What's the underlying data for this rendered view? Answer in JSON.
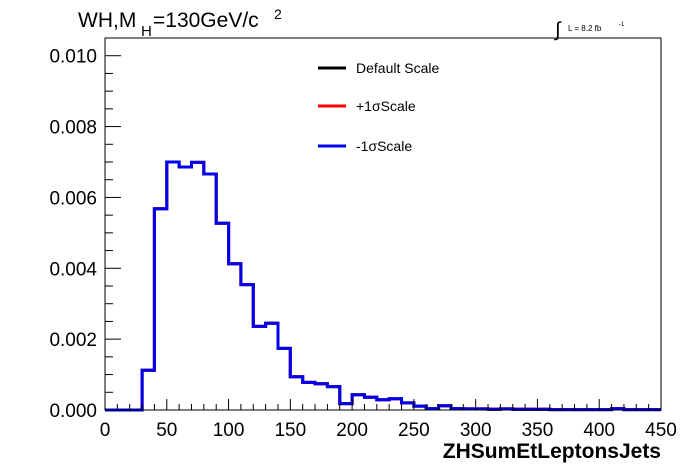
{
  "chart_data": {
    "type": "line",
    "title": "",
    "annotations": {
      "process": "WH,M",
      "process_sub": "H",
      "process_rest": "=130GeV/c",
      "process_sup": "2",
      "lumi_symbol": "∫",
      "lumi_text": "L = 8.2 fb",
      "lumi_sup": "-1"
    },
    "xlabel": "ZHSumEtLeptonsJets",
    "ylabel": "",
    "xlim": [
      0,
      450
    ],
    "ylim": [
      0,
      0.0105
    ],
    "x_ticks": [
      0,
      50,
      100,
      150,
      200,
      250,
      300,
      350,
      400,
      450
    ],
    "x_tick_labels": [
      "0",
      "50",
      "100",
      "150",
      "200",
      "250",
      "300",
      "350",
      "400",
      "450"
    ],
    "y_ticks": [
      0,
      0.002,
      0.004,
      0.006,
      0.008,
      0.01
    ],
    "y_tick_labels": [
      "0.000",
      "0.002",
      "0.004",
      "0.006",
      "0.008",
      "0.010"
    ],
    "grid": false,
    "legend_position": "top-center",
    "bin_edges": [
      0,
      10,
      20,
      30,
      40,
      50,
      60,
      70,
      80,
      90,
      100,
      110,
      120,
      130,
      140,
      150,
      160,
      170,
      180,
      190,
      200,
      210,
      220,
      230,
      240,
      250,
      260,
      270,
      280,
      290,
      300,
      310,
      320,
      330,
      340,
      350,
      360,
      370,
      380,
      390,
      400,
      410,
      420,
      430,
      440,
      450
    ],
    "series": [
      {
        "name": "Default Scale",
        "color": "#000000",
        "values": [
          0,
          0,
          0,
          0.00112,
          0.00568,
          0.007,
          0.00686,
          0.00699,
          0.00666,
          0.00527,
          0.00413,
          0.00354,
          0.00236,
          0.00245,
          0.00174,
          0.00094,
          0.00078,
          0.00074,
          0.00066,
          0.00018,
          0.00043,
          0.00036,
          0.00029,
          0.00032,
          0.0002,
          0.00011,
          4e-05,
          0.00012,
          4e-05,
          3e-05,
          3e-05,
          2e-05,
          3e-05,
          2e-05,
          2e-05,
          2e-05,
          1e-05,
          1e-05,
          1e-05,
          1e-05,
          1e-05,
          4e-05,
          1e-05,
          1e-05,
          1e-05
        ]
      },
      {
        "name": "+1σScale",
        "color": "#ff0000",
        "values": [
          0,
          0,
          0,
          0.00112,
          0.00568,
          0.007,
          0.00686,
          0.00699,
          0.00666,
          0.00527,
          0.00413,
          0.00354,
          0.00236,
          0.00245,
          0.00174,
          0.00094,
          0.00078,
          0.00074,
          0.00066,
          0.00018,
          0.00043,
          0.00036,
          0.00029,
          0.00032,
          0.0002,
          0.00011,
          4e-05,
          0.00012,
          4e-05,
          3e-05,
          3e-05,
          2e-05,
          3e-05,
          2e-05,
          2e-05,
          2e-05,
          1e-05,
          1e-05,
          1e-05,
          1e-05,
          1e-05,
          4e-05,
          1e-05,
          1e-05,
          1e-05
        ]
      },
      {
        "name": "-1σScale",
        "color": "#0000ee",
        "values": [
          0,
          0,
          0,
          0.00112,
          0.00568,
          0.007,
          0.00686,
          0.00699,
          0.00666,
          0.00527,
          0.00413,
          0.00354,
          0.00236,
          0.00245,
          0.00174,
          0.00094,
          0.00078,
          0.00074,
          0.00066,
          0.00018,
          0.00043,
          0.00036,
          0.00029,
          0.00032,
          0.0002,
          0.00011,
          4e-05,
          0.00012,
          4e-05,
          3e-05,
          3e-05,
          2e-05,
          3e-05,
          2e-05,
          2e-05,
          2e-05,
          1e-05,
          1e-05,
          1e-05,
          1e-05,
          1e-05,
          4e-05,
          1e-05,
          1e-05,
          1e-05
        ]
      }
    ]
  }
}
